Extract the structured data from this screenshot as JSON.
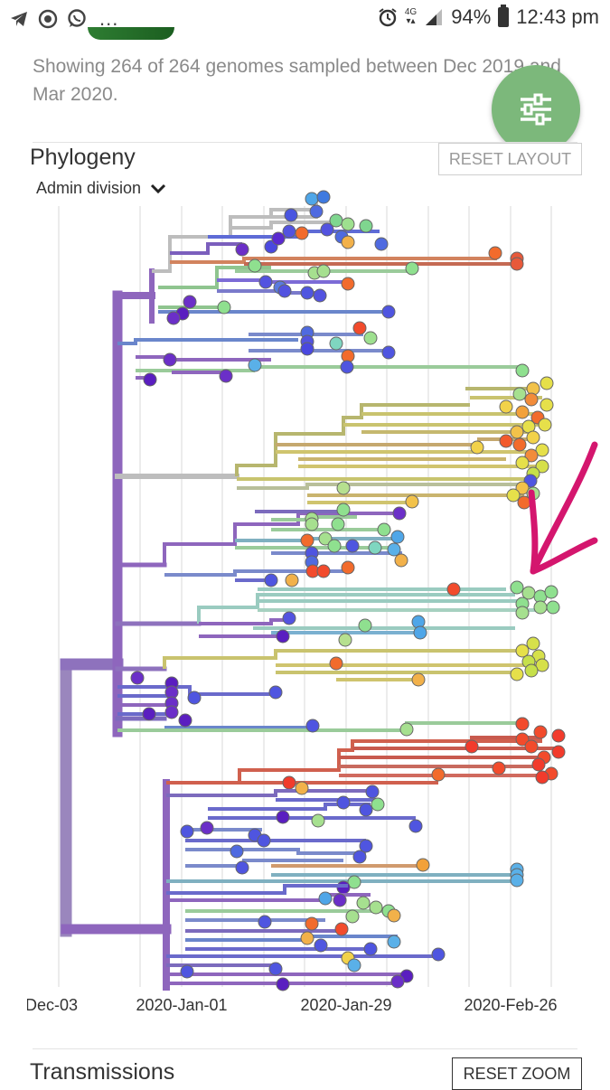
{
  "status_bar": {
    "left_icons": [
      "telegram-icon",
      "sync-icon",
      "whatsapp-icon"
    ],
    "more": "...",
    "right_icons": [
      "alarm-icon",
      "signal-icon",
      "battery-icon"
    ],
    "network_label": "4G",
    "battery": "94%",
    "time": "12:43 pm"
  },
  "summary": {
    "text": "Showing 264 of 264 genomes sampled between Dec 2019 and Mar 2020."
  },
  "fab": {
    "icon": "sliders-icon"
  },
  "phylogeny": {
    "title": "Phylogeny",
    "reset_label": "RESET LAYOUT",
    "color_by": "Admin division",
    "x_ticks": [
      "Dec-03",
      "2020-Jan-01",
      "2020-Jan-29",
      "2020-Feb-26"
    ],
    "annotation": {
      "type": "hand-drawn-arrow",
      "color": "#d4166e"
    }
  },
  "transmissions": {
    "title": "Transmissions",
    "reset_label": "RESET ZOOM"
  }
}
